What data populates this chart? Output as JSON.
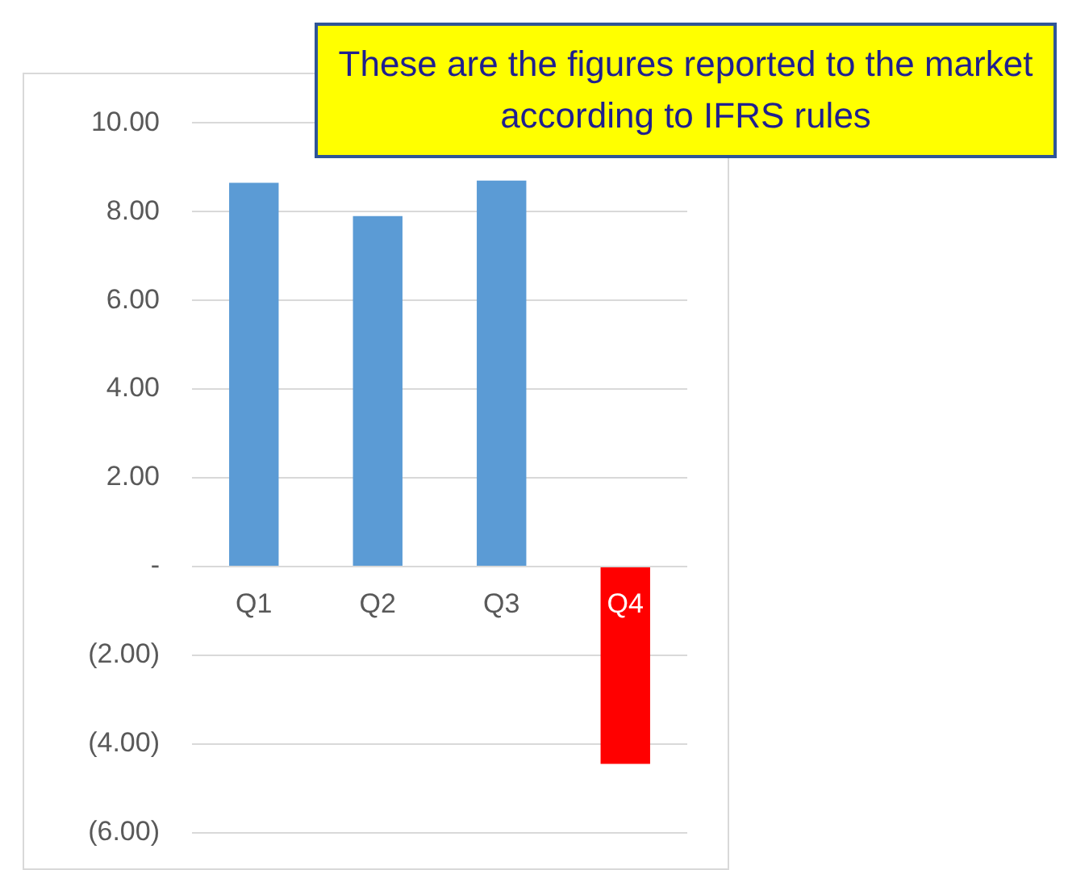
{
  "chart_data": {
    "type": "bar",
    "categories": [
      "Q1",
      "Q2",
      "Q3",
      "Q4"
    ],
    "values": [
      8.65,
      7.9,
      8.7,
      -4.45
    ],
    "colors": [
      "#5b9bd5",
      "#5b9bd5",
      "#5b9bd5",
      "#ff0000"
    ],
    "ylim": [
      -6,
      10
    ],
    "yticks": [
      {
        "value": -6,
        "label": "(6.00)"
      },
      {
        "value": -4,
        "label": "(4.00)"
      },
      {
        "value": -2,
        "label": "(2.00)"
      },
      {
        "value": 0,
        "label": "-"
      },
      {
        "value": 2,
        "label": "2.00"
      },
      {
        "value": 4,
        "label": "4.00"
      },
      {
        "value": 6,
        "label": "6.00"
      },
      {
        "value": 8,
        "label": "8.00"
      },
      {
        "value": 10,
        "label": "10.00"
      }
    ],
    "grid": "y",
    "legend": false,
    "annotations": [
      "These are the figures reported to the market according to IFRS rules"
    ]
  }
}
